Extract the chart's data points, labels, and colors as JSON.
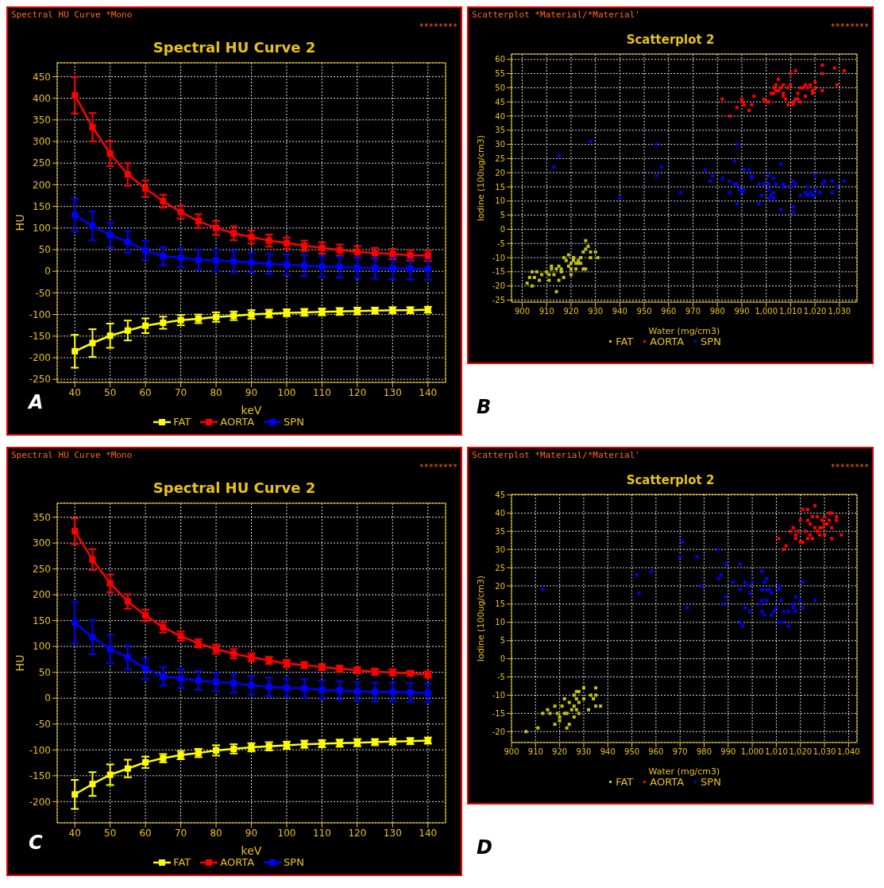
{
  "chart_data": [
    {
      "type": "line",
      "subtitle": "Spectral HU Curve *Mono",
      "title": "Spectral HU Curve 2",
      "xlabel": "keV",
      "ylabel": "HU",
      "annotations": [
        "********",
        "A"
      ],
      "x": [
        40,
        45,
        50,
        55,
        60,
        65,
        70,
        75,
        80,
        85,
        90,
        95,
        100,
        105,
        110,
        115,
        120,
        125,
        130,
        135,
        140
      ],
      "xlim": [
        35,
        145
      ],
      "xticks": [
        40,
        50,
        60,
        70,
        80,
        90,
        100,
        110,
        120,
        130,
        140
      ],
      "ylim": [
        -257,
        482
      ],
      "yticks": [
        -250,
        -200,
        -150,
        -100,
        -50,
        0,
        50,
        100,
        150,
        200,
        250,
        300,
        350,
        400,
        450
      ],
      "grid": true,
      "legend": "bottom",
      "marker": "square",
      "series": [
        {
          "name": "FAT",
          "color": "#ffff00",
          "values": [
            -185,
            -166,
            -149,
            -137,
            -126,
            -119,
            -113,
            -110,
            -106,
            -103,
            -100,
            -98,
            -96,
            -95,
            -94,
            -93,
            -92,
            -91,
            -90,
            -90,
            -89
          ],
          "errors": [
            38,
            32,
            28,
            23,
            17,
            14,
            12,
            10,
            11,
            10,
            10,
            9,
            8,
            8,
            8,
            8,
            8,
            7,
            7,
            7,
            7
          ]
        },
        {
          "name": "AORTA",
          "color": "#ff0000",
          "values": [
            407,
            333,
            272,
            224,
            191,
            162,
            137,
            116,
            100,
            88,
            79,
            71,
            65,
            59,
            54,
            49,
            45,
            42,
            40,
            37,
            36
          ],
          "errors": [
            42,
            33,
            29,
            26,
            19,
            15,
            15,
            16,
            16,
            16,
            15,
            14,
            13,
            12,
            13,
            13,
            13,
            12,
            12,
            12,
            12
          ]
        },
        {
          "name": "SPN",
          "color": "#0000ff",
          "values": [
            130,
            105,
            84,
            68,
            48,
            35,
            31,
            26,
            25,
            23,
            20,
            17,
            15,
            13,
            11,
            10,
            8,
            7,
            7,
            6,
            5
          ],
          "errors": [
            38,
            33,
            28,
            25,
            22,
            21,
            22,
            23,
            25,
            25,
            23,
            23,
            24,
            24,
            24,
            24,
            24,
            24,
            25,
            25,
            25
          ]
        }
      ]
    },
    {
      "type": "scatter",
      "subtitle": "Scatterplot *Material/*Material'",
      "title": "Scatterplot 2",
      "xlabel": "Water (mg/cm3)",
      "ylabel": "Iodine (100ug/cm3)",
      "annotations": [
        "********",
        "B"
      ],
      "xlim": [
        895.6,
        1037.2
      ],
      "xticks": [
        900,
        910,
        920,
        930,
        940,
        950,
        960,
        970,
        980,
        990,
        {
          "value": 1000,
          "label": "1,000"
        },
        {
          "value": 1010,
          "label": "1,010"
        },
        {
          "value": 1020,
          "label": "1,020"
        },
        {
          "value": 1030,
          "label": "1,030"
        }
      ],
      "ylim": [
        -25.7,
        61.9
      ],
      "yticks": [
        -25,
        -20,
        -15,
        -10,
        -5,
        0,
        5,
        10,
        15,
        20,
        25,
        30,
        35,
        40,
        45,
        50,
        55,
        60
      ],
      "grid": true,
      "legend": "bottom",
      "marker": "square",
      "series": [
        {
          "name": "FAT",
          "color": "#c0c010",
          "x": [
            902,
            903,
            904,
            904,
            905,
            906,
            907,
            908,
            910,
            911,
            911,
            912,
            912,
            913,
            914,
            914,
            915,
            915,
            916,
            916,
            917,
            917,
            918,
            919,
            919,
            920,
            920,
            920,
            921,
            921,
            922,
            922,
            923,
            923,
            924,
            924,
            925,
            925,
            926,
            926,
            926,
            927,
            928,
            928,
            930,
            931
          ],
          "values": [
            -19,
            -17,
            -15,
            -20,
            -17,
            -15,
            -18,
            -16,
            -15,
            -18,
            -16,
            -14,
            -13,
            -16,
            -22,
            -14,
            -18,
            -13,
            -14,
            -15,
            -10,
            -17,
            -11,
            -9,
            -13,
            -14,
            -16,
            -12,
            -10,
            -11,
            -12,
            -14,
            -11,
            -12,
            -10,
            -12,
            -8,
            -14,
            -7,
            -4,
            -14,
            -6,
            -8,
            -10,
            -8,
            -10
          ]
        },
        {
          "name": "AORTA",
          "color": "#ff0000",
          "x": [
            982,
            985,
            988,
            990,
            990,
            991,
            993,
            994,
            995,
            999,
            1000,
            1001,
            1002,
            1003,
            1003,
            1004,
            1004,
            1005,
            1005,
            1006,
            1007,
            1007,
            1007,
            1008,
            1009,
            1009,
            1010,
            1010,
            1011,
            1011,
            1012,
            1012,
            1013,
            1013,
            1014,
            1014,
            1015,
            1016,
            1016,
            1017,
            1018,
            1019,
            1019,
            1020,
            1020,
            1023,
            1023,
            1023,
            1028,
            1029,
            1032
          ],
          "values": [
            46,
            40,
            43,
            46,
            45,
            44,
            42,
            44,
            47,
            46,
            45,
            45,
            48,
            48,
            50,
            51,
            49,
            53,
            49,
            50,
            51,
            48,
            47,
            46,
            44,
            50,
            51,
            55,
            44,
            45,
            56,
            46,
            46,
            48,
            45,
            50,
            50,
            51,
            47,
            50,
            51,
            49,
            48,
            52,
            50,
            58,
            55,
            49,
            57,
            51,
            56
          ]
        },
        {
          "name": "SPN",
          "color": "#0000ff",
          "x": [
            913,
            915,
            928,
            940,
            955,
            955,
            957,
            965,
            975,
            977,
            978,
            982,
            985,
            985,
            987,
            987,
            988,
            988,
            988,
            989,
            990,
            991,
            991,
            993,
            994,
            994,
            997,
            997,
            998,
            999,
            1001,
            1001,
            1001,
            1001,
            1002,
            1003,
            1003,
            1003,
            1004,
            1006,
            1006,
            1007,
            1007,
            1010,
            1011,
            1011,
            1011,
            1012,
            1014,
            1016,
            1017,
            1017,
            1018,
            1019,
            1020,
            1020,
            1020,
            1022,
            1023,
            1024,
            1027,
            1027,
            1029,
            1032
          ],
          "values": [
            22,
            26,
            31,
            11,
            30,
            19,
            22,
            13,
            21,
            17,
            19,
            18,
            17,
            13,
            24,
            16,
            30,
            16,
            9,
            14,
            13,
            21,
            14,
            21,
            19,
            18,
            16,
            9,
            12,
            16,
            19,
            16,
            14,
            11,
            12,
            18,
            13,
            11,
            16,
            23,
            7,
            16,
            15,
            15,
            17,
            8,
            6,
            16,
            12,
            13,
            15,
            12,
            13,
            12,
            19,
            14,
            12,
            13,
            16,
            17,
            17,
            13,
            15,
            17
          ]
        }
      ]
    },
    {
      "type": "line",
      "subtitle": "Spectral HU Curve *Mono",
      "title": "Spectral HU Curve 2",
      "xlabel": "keV",
      "ylabel": "HU",
      "annotations": [
        "********",
        "C"
      ],
      "x": [
        40,
        45,
        50,
        55,
        60,
        65,
        70,
        75,
        80,
        85,
        90,
        95,
        100,
        105,
        110,
        115,
        120,
        125,
        130,
        135,
        140
      ],
      "xlim": [
        35,
        145
      ],
      "xticks": [
        40,
        50,
        60,
        70,
        80,
        90,
        100,
        110,
        120,
        130,
        140
      ],
      "ylim": [
        -241,
        377
      ],
      "yticks": [
        -200,
        -150,
        -100,
        -50,
        0,
        50,
        100,
        150,
        200,
        250,
        300,
        350
      ],
      "grid": true,
      "legend": "bottom",
      "marker": "square",
      "series": [
        {
          "name": "FAT",
          "color": "#ffff00",
          "values": [
            -186,
            -166,
            -148,
            -136,
            -124,
            -116,
            -110,
            -106,
            -101,
            -98,
            -95,
            -93,
            -91,
            -89,
            -88,
            -87,
            -86,
            -85,
            -84,
            -83,
            -82
          ],
          "errors": [
            28,
            23,
            20,
            17,
            11,
            8,
            8,
            8,
            10,
            9,
            8,
            8,
            7,
            7,
            7,
            7,
            7,
            6,
            6,
            6,
            6
          ]
        },
        {
          "name": "AORTA",
          "color": "#ff0000",
          "values": [
            323,
            268,
            222,
            187,
            160,
            137,
            120,
            106,
            95,
            86,
            79,
            73,
            67,
            64,
            60,
            57,
            54,
            51,
            50,
            48,
            46
          ],
          "errors": [
            25,
            20,
            17,
            14,
            11,
            10,
            9,
            8,
            9,
            9,
            8,
            7,
            7,
            6,
            6,
            6,
            6,
            6,
            6,
            5,
            6
          ]
        },
        {
          "name": "SPN",
          "color": "#0000ff",
          "values": [
            146,
            118,
            95,
            79,
            57,
            42,
            38,
            34,
            31,
            29,
            25,
            22,
            20,
            19,
            16,
            15,
            13,
            12,
            12,
            11,
            10
          ],
          "errors": [
            40,
            33,
            27,
            23,
            20,
            18,
            18,
            18,
            18,
            18,
            18,
            18,
            18,
            18,
            18,
            18,
            18,
            18,
            18,
            18,
            18
          ]
        }
      ]
    },
    {
      "type": "scatter",
      "subtitle": "Scatterplot *Material/*Material'",
      "title": "Scatterplot 2",
      "xlabel": "Water (mg/cm3)",
      "ylabel": "Iodine (100ug/cm3)",
      "annotations": [
        "********",
        "D"
      ],
      "xlim": [
        900,
        1043.5
      ],
      "xticks": [
        900,
        910,
        920,
        930,
        940,
        950,
        960,
        970,
        980,
        990,
        {
          "value": 1000,
          "label": "1,000"
        },
        {
          "value": 1010,
          "label": "1,010"
        },
        {
          "value": 1020,
          "label": "1,020"
        },
        {
          "value": 1030,
          "label": "1,030"
        },
        {
          "value": 1040,
          "label": "1,040"
        }
      ],
      "ylim": [
        -23,
        45.1
      ],
      "yticks": [
        -20,
        -15,
        -10,
        -5,
        0,
        5,
        10,
        15,
        20,
        25,
        30,
        35,
        40,
        45
      ],
      "grid": true,
      "legend": "bottom",
      "marker": "square",
      "series": [
        {
          "name": "FAT",
          "color": "#c0c010",
          "x": [
            906,
            911,
            913,
            915,
            916,
            918,
            918,
            919,
            920,
            920,
            921,
            922,
            922,
            923,
            923,
            924,
            924,
            925,
            926,
            926,
            926,
            927,
            927,
            927,
            928,
            928,
            928,
            930,
            930,
            932,
            933,
            934,
            935,
            935,
            935,
            937
          ],
          "values": [
            -20,
            -19,
            -15,
            -14,
            -15,
            -18,
            -13,
            -15,
            -17,
            -16,
            -13,
            -11,
            -15,
            -15,
            -19,
            -12,
            -18,
            -14,
            -10,
            -13,
            -16,
            -9,
            -11,
            -14,
            -9,
            -12,
            -15,
            -8,
            -11,
            -14,
            -10,
            -11,
            -8,
            -10,
            -13,
            -13
          ]
        },
        {
          "name": "AORTA",
          "color": "#ff0000",
          "x": [
            1011,
            1013,
            1014,
            1016,
            1017,
            1018,
            1018,
            1019,
            1020,
            1020,
            1021,
            1021,
            1022,
            1023,
            1023,
            1023,
            1024,
            1024,
            1025,
            1025,
            1026,
            1026,
            1027,
            1027,
            1028,
            1028,
            1029,
            1029,
            1030,
            1030,
            1030,
            1031,
            1032,
            1032,
            1033,
            1033,
            1033,
            1035,
            1035,
            1037
          ],
          "values": [
            33,
            30,
            31,
            35,
            36,
            33,
            34,
            35,
            38,
            32,
            41,
            32,
            35,
            41,
            38,
            33,
            37,
            34,
            39,
            33,
            42,
            36,
            35,
            39,
            36,
            34,
            38,
            36,
            37,
            39,
            34,
            37,
            40,
            38,
            40,
            36,
            33,
            39,
            38,
            34
          ]
        },
        {
          "name": "SPN",
          "color": "#0000ff",
          "x": [
            913,
            952,
            953,
            958,
            970,
            971,
            973,
            977,
            979,
            986,
            986,
            987,
            988,
            989,
            989,
            992,
            995,
            995,
            995,
            996,
            997,
            997,
            998,
            999,
            999,
            1000,
            1003,
            1004,
            1004,
            1004,
            1004,
            1005,
            1005,
            1006,
            1006,
            1006,
            1007,
            1008,
            1008,
            1009,
            1010,
            1011,
            1011,
            1011,
            1012,
            1013,
            1013,
            1015,
            1015,
            1017,
            1017,
            1018,
            1018,
            1020,
            1021,
            1021,
            1026
          ],
          "values": [
            19,
            23,
            18,
            24,
            28,
            32,
            14,
            28,
            20,
            30,
            22,
            23,
            15,
            26,
            17,
            21,
            26,
            19,
            10,
            9,
            21,
            14,
            20,
            18,
            13,
            21,
            15,
            24,
            19,
            16,
            13,
            21,
            12,
            22,
            19,
            16,
            19,
            18,
            12,
            13,
            14,
            20,
            19,
            10,
            16,
            13,
            10,
            13,
            9,
            15,
            14,
            17,
            13,
            16,
            21,
            14,
            16
          ]
        }
      ]
    }
  ]
}
